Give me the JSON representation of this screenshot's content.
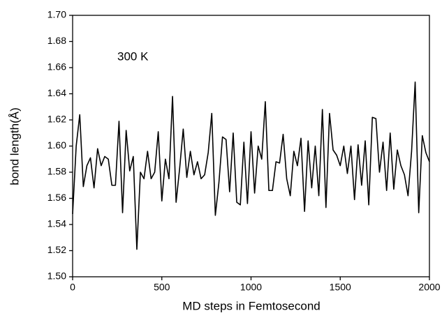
{
  "chart_data": {
    "type": "line",
    "annotation": "300 K",
    "x_label": "MD steps in Femtosecond",
    "y_label": "bond length(Å)",
    "x": [
      0,
      20,
      40,
      60,
      80,
      100,
      120,
      140,
      160,
      180,
      200,
      220,
      240,
      260,
      280,
      300,
      320,
      340,
      360,
      380,
      400,
      420,
      440,
      460,
      480,
      500,
      520,
      540,
      560,
      580,
      600,
      620,
      640,
      660,
      680,
      700,
      720,
      740,
      760,
      780,
      800,
      820,
      840,
      860,
      880,
      900,
      920,
      940,
      960,
      980,
      1000,
      1020,
      1040,
      1060,
      1080,
      1100,
      1120,
      1140,
      1160,
      1180,
      1200,
      1220,
      1240,
      1260,
      1280,
      1300,
      1320,
      1340,
      1360,
      1380,
      1400,
      1420,
      1440,
      1460,
      1480,
      1500,
      1520,
      1540,
      1560,
      1580,
      1600,
      1620,
      1640,
      1660,
      1680,
      1700,
      1720,
      1740,
      1760,
      1780,
      1800,
      1820,
      1840,
      1860,
      1880,
      1900,
      1920,
      1940,
      1960,
      1980,
      2000
    ],
    "values": [
      1.548,
      1.6,
      1.624,
      1.569,
      1.585,
      1.591,
      1.568,
      1.598,
      1.585,
      1.592,
      1.59,
      1.57,
      1.57,
      1.619,
      1.549,
      1.612,
      1.581,
      1.592,
      1.521,
      1.58,
      1.575,
      1.596,
      1.575,
      1.58,
      1.611,
      1.558,
      1.59,
      1.575,
      1.638,
      1.557,
      1.583,
      1.613,
      1.576,
      1.596,
      1.578,
      1.588,
      1.575,
      1.578,
      1.595,
      1.625,
      1.547,
      1.572,
      1.607,
      1.605,
      1.565,
      1.61,
      1.557,
      1.555,
      1.603,
      1.556,
      1.611,
      1.564,
      1.6,
      1.59,
      1.634,
      1.566,
      1.566,
      1.588,
      1.587,
      1.609,
      1.575,
      1.562,
      1.596,
      1.585,
      1.606,
      1.55,
      1.604,
      1.568,
      1.6,
      1.562,
      1.628,
      1.553,
      1.625,
      1.597,
      1.593,
      1.585,
      1.6,
      1.579,
      1.6,
      1.559,
      1.601,
      1.57,
      1.604,
      1.555,
      1.622,
      1.621,
      1.58,
      1.603,
      1.566,
      1.61,
      1.567,
      1.597,
      1.585,
      1.578,
      1.562,
      1.596,
      1.649,
      1.549,
      1.608,
      1.595,
      1.588
    ],
    "color": "#000000",
    "xlim": [
      0,
      2000
    ],
    "xticks": [
      0,
      500,
      1000,
      1500,
      2000
    ],
    "ylim": [
      1.5,
      1.7
    ],
    "yticks": [
      {
        "value": 1.5,
        "label": "1.50"
      },
      1.52,
      1.54,
      1.56,
      1.58,
      {
        "value": 1.6,
        "label": "1.60"
      },
      1.62,
      1.64,
      1.66,
      1.68,
      {
        "value": 1.7,
        "label": "1.70"
      }
    ],
    "grid": false
  }
}
